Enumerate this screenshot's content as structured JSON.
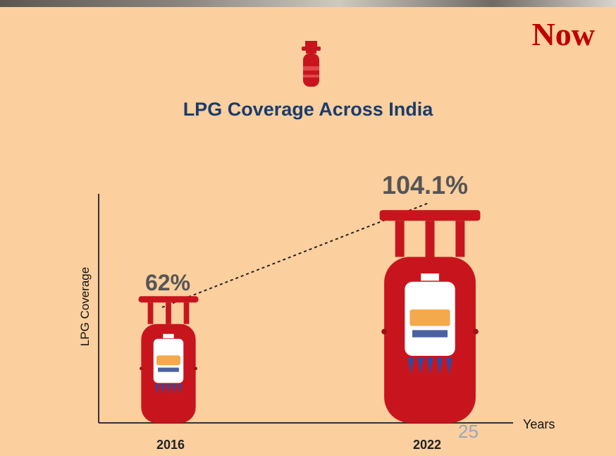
{
  "slide": {
    "now_label": "Now",
    "page_number": "25",
    "accent_color": "#c00000",
    "background_color": "#fbcf9e"
  },
  "chart_data": {
    "type": "bar",
    "title": "LPG Coverage Across India",
    "ylabel": "LPG Coverage",
    "xlabel": "Years",
    "categories": [
      "2016",
      "2022"
    ],
    "values": [
      62,
      104.1
    ],
    "data_labels": [
      "62%",
      "104.1%"
    ],
    "unit": "%",
    "mark": "lpg-cylinder-icon",
    "mark_color": "#c8151d",
    "trend_line": "dotted",
    "grid": false
  }
}
